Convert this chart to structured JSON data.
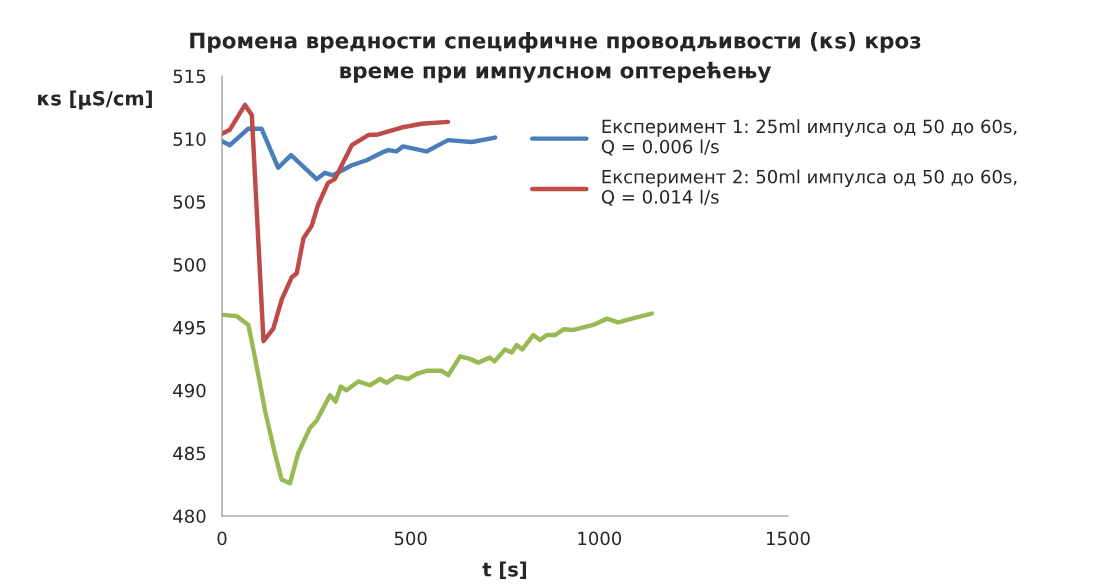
{
  "chart_data": {
    "type": "line",
    "title": "Промена вредности специфичне проводљивости (κs) кроз\nвреме при импулсном оптерећењу",
    "xlabel": "t [s]",
    "ylabel": "κs [μS/cm]",
    "xlim": [
      0,
      1500
    ],
    "xticks": [
      0,
      500,
      1000,
      1500
    ],
    "ylim": [
      480,
      515
    ],
    "yticks": [
      480,
      485,
      490,
      495,
      500,
      505,
      510,
      515
    ],
    "grid": false,
    "legend": "top right",
    "marker": "none",
    "line_style": "solid",
    "series": [
      {
        "name": "Експеримент 1: 25ml импулса од 50 до 60s,\nQ = 0.006 l/s",
        "color": "#4a7ebb",
        "x": [
          0,
          21,
          69,
          105,
          149,
          183,
          251,
          273,
          294,
          344,
          383,
          423,
          441,
          462,
          480,
          542,
          599,
          662,
          724
        ],
        "values": [
          509.8,
          509.5,
          510.8,
          510.8,
          507.7,
          508.7,
          506.8,
          507.3,
          507.1,
          507.9,
          508.3,
          508.9,
          509.1,
          509.0,
          509.4,
          509.0,
          509.9,
          509.75,
          510.1
        ]
      },
      {
        "name": "Експеримент 2: 50ml импулса од 50 до 60s,\nQ = 0.014 l/s",
        "color": "#be4b48",
        "x": [
          0,
          20,
          61,
          79,
          110,
          136,
          158,
          185,
          198,
          216,
          238,
          254,
          281,
          299,
          344,
          388,
          414,
          476,
          529,
          599
        ],
        "values": [
          510.4,
          510.7,
          512.7,
          511.9,
          493.9,
          494.9,
          497.2,
          499.0,
          499.3,
          502.1,
          503.1,
          504.7,
          506.5,
          506.8,
          509.5,
          510.3,
          510.35,
          510.9,
          511.2,
          511.35
        ]
      },
      {
        "color": "#98b954",
        "x": [
          4,
          39,
          70,
          92,
          114,
          140,
          158,
          180,
          202,
          233,
          251,
          286,
          301,
          315,
          330,
          361,
          392,
          419,
          436,
          463,
          494,
          516,
          542,
          582,
          600,
          631,
          657,
          679,
          710,
          722,
          750,
          768,
          781,
          796,
          825,
          843,
          861,
          883,
          905,
          931,
          984,
          1020,
          1050,
          1086,
          1139
        ],
        "values": [
          496.0,
          495.9,
          495.2,
          491.9,
          488.4,
          485.0,
          482.9,
          482.6,
          485.0,
          487.0,
          487.6,
          489.6,
          489.1,
          490.3,
          490.0,
          490.7,
          490.4,
          490.9,
          490.6,
          491.1,
          490.9,
          491.3,
          491.55,
          491.55,
          491.2,
          492.7,
          492.5,
          492.2,
          492.6,
          492.3,
          493.25,
          493.0,
          493.6,
          493.25,
          494.4,
          494.0,
          494.4,
          494.4,
          494.85,
          494.8,
          495.2,
          495.7,
          495.4,
          495.7,
          496.1
        ]
      }
    ]
  }
}
